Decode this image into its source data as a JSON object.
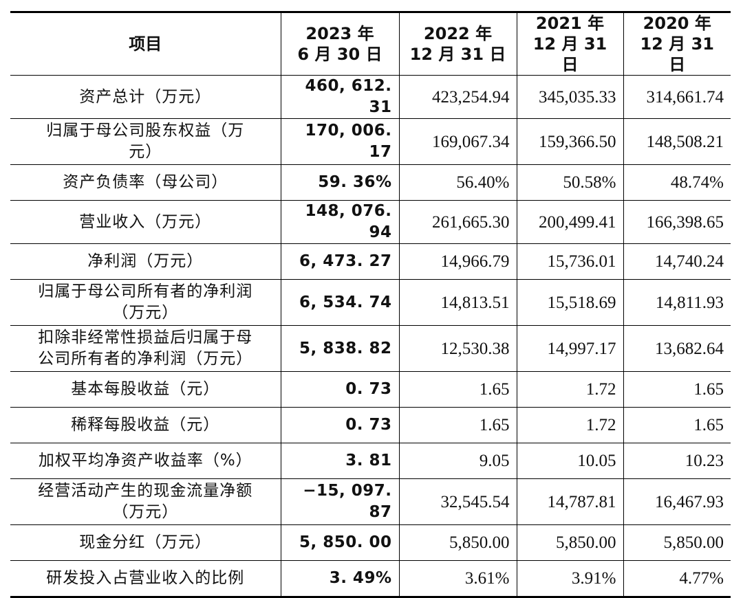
{
  "header": {
    "item": "项目",
    "col1": [
      "2023 年",
      "6 月 30 日"
    ],
    "col2": [
      "2022 年",
      "12 月 31 日"
    ],
    "col3": [
      "2021 年",
      "12 月 31 日"
    ],
    "col4": [
      "2020 年",
      "12 月 31 日"
    ]
  },
  "rows": [
    {
      "label": [
        "资产总计（万元）"
      ],
      "v2023h1": "460, 612. 31",
      "v2022": "423,254.94",
      "v2021": "345,035.33",
      "v2020": "314,661.74"
    },
    {
      "label": [
        "归属于母公司股东权益（万",
        "元）"
      ],
      "v2023h1": "170, 006. 17",
      "v2022": "169,067.34",
      "v2021": "159,366.50",
      "v2020": "148,508.21"
    },
    {
      "label": [
        "资产负债率（母公司）"
      ],
      "v2023h1": "59. 36%",
      "v2022": "56.40%",
      "v2021": "50.58%",
      "v2020": "48.74%"
    },
    {
      "label": [
        "营业收入（万元）"
      ],
      "v2023h1": "148, 076. 94",
      "v2022": "261,665.30",
      "v2021": "200,499.41",
      "v2020": "166,398.65"
    },
    {
      "label": [
        "净利润（万元）"
      ],
      "v2023h1": "6, 473. 27",
      "v2022": "14,966.79",
      "v2021": "15,736.01",
      "v2020": "14,740.24"
    },
    {
      "label": [
        "归属于母公司所有者的净利润",
        "（万元）"
      ],
      "v2023h1": "6, 534. 74",
      "v2022": "14,813.51",
      "v2021": "15,518.69",
      "v2020": "14,811.93"
    },
    {
      "label": [
        "扣除非经常性损益后归属于母",
        "公司所有者的净利润（万元）"
      ],
      "v2023h1": "5, 838. 82",
      "v2022": "12,530.38",
      "v2021": "14,997.17",
      "v2020": "13,682.64"
    },
    {
      "label": [
        "基本每股收益（元）"
      ],
      "v2023h1": "0. 73",
      "v2022": "1.65",
      "v2021": "1.72",
      "v2020": "1.65"
    },
    {
      "label": [
        "稀释每股收益（元）"
      ],
      "v2023h1": "0. 73",
      "v2022": "1.65",
      "v2021": "1.72",
      "v2020": "1.65"
    },
    {
      "label": [
        "加权平均净资产收益率（%）"
      ],
      "v2023h1": "3. 81",
      "v2022": "9.05",
      "v2021": "10.05",
      "v2020": "10.23"
    },
    {
      "label": [
        "经营活动产生的现金流量净额",
        "（万元）"
      ],
      "v2023h1": "−15, 097. 87",
      "v2022": "32,545.54",
      "v2021": "14,787.81",
      "v2020": "16,467.93"
    },
    {
      "label": [
        "现金分红（万元）"
      ],
      "v2023h1": "5, 850. 00",
      "v2022": "5,850.00",
      "v2021": "5,850.00",
      "v2020": "5,850.00"
    },
    {
      "label": [
        "研发投入占营业收入的比例"
      ],
      "v2023h1": "3. 49%",
      "v2022": "3.61%",
      "v2021": "3.91%",
      "v2020": "4.77%"
    }
  ]
}
